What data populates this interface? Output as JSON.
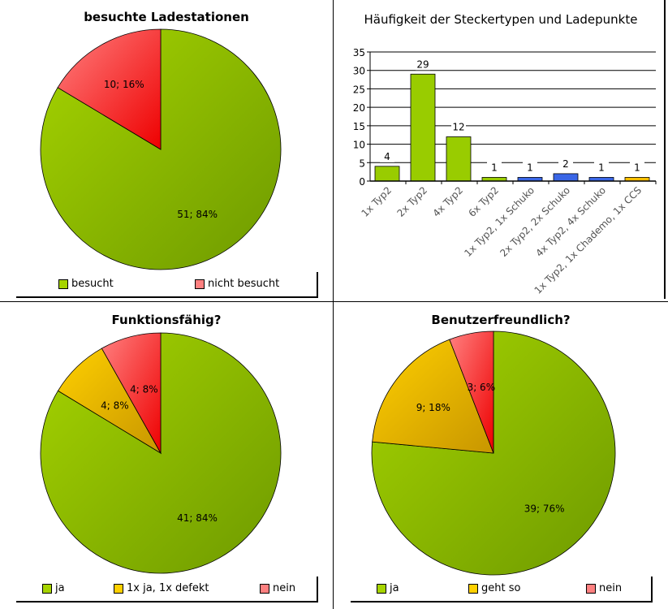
{
  "colors": {
    "green": [
      "#a6d400",
      "#6e9a00"
    ],
    "red": [
      "#ff8080",
      "#ee0000"
    ],
    "orange": [
      "#ffd000",
      "#c89600"
    ],
    "blue": "#3a66e6",
    "bar_green": "#99cc00",
    "bar_yellow": "#ffc000"
  },
  "chart_data": [
    {
      "type": "pie",
      "title": "besuchte Ladestationen",
      "slices": [
        {
          "name": "besucht",
          "value": 51,
          "pct": 84,
          "label": "51; 84%",
          "color": "green"
        },
        {
          "name": "nicht besucht",
          "value": 10,
          "pct": 16,
          "label": "10; 16%",
          "color": "red"
        }
      ],
      "legend": "bottom"
    },
    {
      "type": "bar",
      "title": "Häufigkeit der Steckertypen und Ladepunkte",
      "categories": [
        "1x Typ2",
        "2x Typ2",
        "4x Typ2",
        "6x Typ2",
        "1x Typ2, 1x Schuko",
        "2x Typ2, 2x Schuko",
        "4x Typ2, 4x Schuko",
        "1x Typ2, 1x Chademo, 1x CCS"
      ],
      "values": [
        4,
        29,
        12,
        1,
        1,
        2,
        1,
        1
      ],
      "bar_colors": [
        "bar_green",
        "bar_green",
        "bar_green",
        "bar_green",
        "blue",
        "blue",
        "blue",
        "bar_yellow"
      ],
      "ylim": [
        0,
        35
      ],
      "yticks": [
        "0",
        "5",
        "10",
        "15",
        "20",
        "25",
        "30",
        "35"
      ],
      "grid": true
    },
    {
      "type": "pie",
      "title": "Funktionsfähig?",
      "slices": [
        {
          "name": "ja",
          "value": 41,
          "pct": 84,
          "label": "41; 84%",
          "color": "green"
        },
        {
          "name": "1x ja, 1x defekt",
          "value": 4,
          "pct": 8,
          "label": "4; 8%",
          "color": "orange"
        },
        {
          "name": "nein",
          "value": 4,
          "pct": 8,
          "label": "4; 8%",
          "color": "red"
        }
      ],
      "legend": "bottom"
    },
    {
      "type": "pie",
      "title": "Benutzerfreundlich?",
      "slices": [
        {
          "name": "ja",
          "value": 39,
          "pct": 76,
          "label": "39; 76%",
          "color": "green"
        },
        {
          "name": "geht so",
          "value": 9,
          "pct": 18,
          "label": "9; 18%",
          "color": "orange"
        },
        {
          "name": "nein",
          "value": 3,
          "pct": 6,
          "label": "3; 6%",
          "color": "red"
        }
      ],
      "legend": "bottom"
    }
  ]
}
